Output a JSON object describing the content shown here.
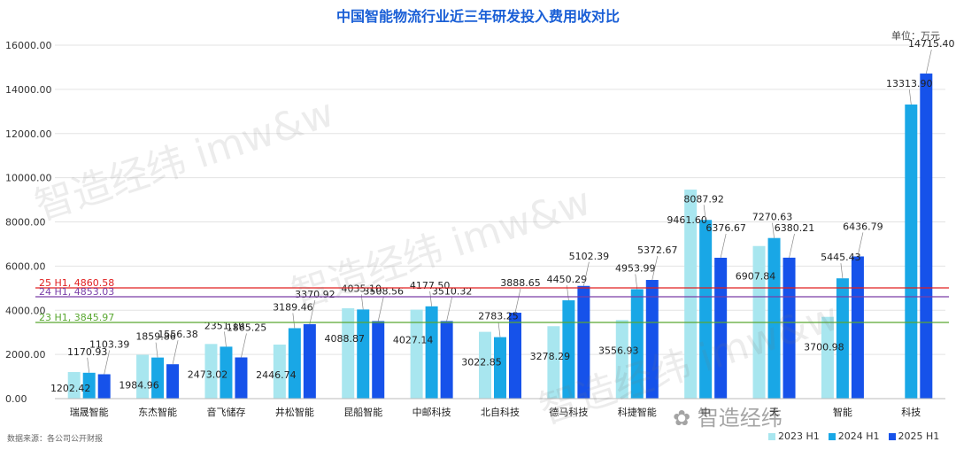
{
  "title": "中国智能物流行业近三年研发投入费用收对比",
  "unit": "单位：万元",
  "source": "数据来源：各公司公开财报",
  "watermark": "智造经纬 imw&w",
  "watermark_badge": "智造经纬",
  "colors": {
    "s2023": "#a8e6ef",
    "s2024": "#19a7e6",
    "s2025": "#1652ea",
    "ref25": "#e02020",
    "ref24": "#7a3fa8",
    "ref23": "#5aa832",
    "title": "#1a5fd6"
  },
  "chart_data": {
    "type": "bar",
    "title": "中国智能物流行业近三年研发投入费用收对比",
    "ylabel": "",
    "xlabel": "",
    "ylim": [
      0,
      16000
    ],
    "yticks": [
      "0.00",
      "2000.00",
      "4000.00",
      "6000.00",
      "8000.00",
      "10000.00",
      "12000.00",
      "14000.00",
      "16000.00"
    ],
    "grid": true,
    "legend_position": "bottom-right",
    "categories": [
      "瑞晟智能",
      "东杰智能",
      "音飞储存",
      "井松智能",
      "昆船智能",
      "中邮科技",
      "北自科技",
      "德马科技",
      "科捷智能",
      "中",
      "天",
      "智能",
      "科技"
    ],
    "series": [
      {
        "name": "2023 H1",
        "values": [
          1202.42,
          1984.96,
          2473.02,
          2446.74,
          4088.87,
          4027.14,
          3022.85,
          3278.29,
          3556.93,
          9461.6,
          6907.84,
          3700.98,
          null
        ],
        "labels": [
          "1202.42",
          "1984.96",
          "2473.02",
          "2446.74",
          "4088.87",
          "4027.14",
          "3022.85",
          "3278.29",
          "3556.93",
          "9461.60",
          "6907.84",
          "3700.98",
          ""
        ]
      },
      {
        "name": "2024 H1",
        "values": [
          1170.93,
          1859.86,
          2351.19,
          3189.46,
          4035.1,
          4177.5,
          2783.25,
          4450.29,
          4953.99,
          8087.92,
          7270.63,
          5445.43,
          13313.9
        ],
        "labels": [
          "1170.93",
          "1859.86",
          "2351.19",
          "3189.46",
          "4035.10",
          "4177.50",
          "2783.25",
          "4450.29",
          "4953.99",
          "8087.92",
          "7270.63",
          "5445.43",
          "13313.90"
        ]
      },
      {
        "name": "2025 H1",
        "values": [
          1103.39,
          1556.38,
          1865.25,
          3370.92,
          3508.56,
          3510.32,
          3888.65,
          5102.39,
          5372.67,
          6376.67,
          6380.21,
          6436.79,
          14715.4
        ],
        "labels": [
          "1103.39",
          "1556.38",
          "1865.25",
          "3370.92",
          "3508.56",
          "3510.32",
          "3888.65",
          "5102.39",
          "5372.67",
          "6376.67",
          "6380.21",
          "6436.79",
          "14715.40"
        ]
      }
    ],
    "reference_lines": [
      {
        "label": "25 H1, 4860.58",
        "value": 4860.58,
        "color": "#e02020"
      },
      {
        "label": "24 H1, 4853.03",
        "value": 4853.03,
        "color": "#7a3fa8"
      },
      {
        "label": "23 H1, 3845.97",
        "value": 3845.97,
        "color": "#5aa832"
      }
    ]
  }
}
